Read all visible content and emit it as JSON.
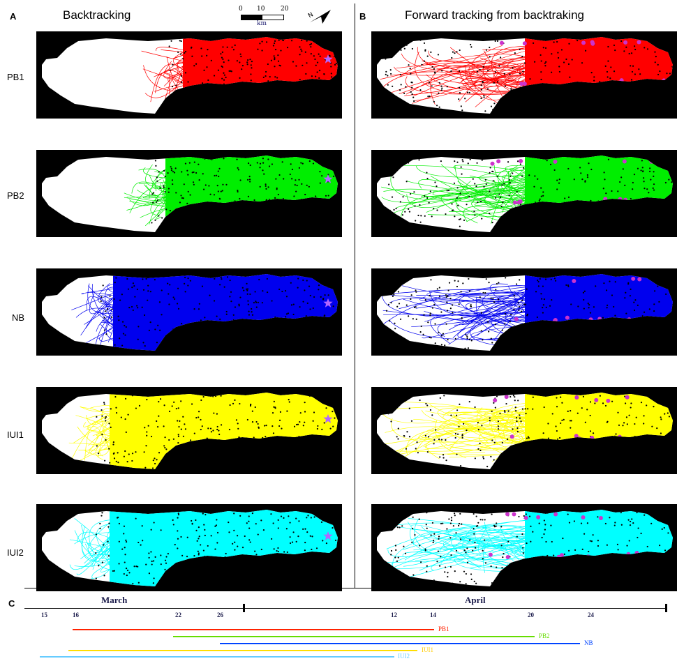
{
  "panels": {
    "a_letter": "A",
    "a_title": "Backtracking",
    "b_letter": "B",
    "b_title": "Forward tracking from backtraking",
    "c_letter": "C"
  },
  "scale": {
    "n0": "0",
    "n10": "10",
    "n20": "20",
    "unit": "km"
  },
  "rows": [
    {
      "label": "PB1",
      "color": "#ff0000"
    },
    {
      "label": "PB2",
      "color": "#00ee00"
    },
    {
      "label": "NB",
      "color": "#0000ee"
    },
    {
      "label": "IUI1",
      "color": "#ffff00"
    },
    {
      "label": "IUI2",
      "color": "#00ffff"
    }
  ],
  "timeline": {
    "months": [
      "March",
      "April"
    ],
    "days": [
      "15",
      "16",
      "22",
      "26",
      "12",
      "14",
      "20",
      "24"
    ],
    "bars": [
      {
        "label": "PB1",
        "color": "#ff2200",
        "start": "16",
        "end": "14"
      },
      {
        "label": "PB2",
        "color": "#66dd00",
        "start": "22",
        "end": "20"
      },
      {
        "label": "NB",
        "color": "#0044ff",
        "start": "26",
        "end": "24+"
      },
      {
        "label": "IUI1",
        "color": "#ffdd00",
        "start": "16",
        "end": "12"
      },
      {
        "label": "IUI2",
        "color": "#66ccff",
        "start": "15",
        "end": "12-"
      }
    ]
  }
}
